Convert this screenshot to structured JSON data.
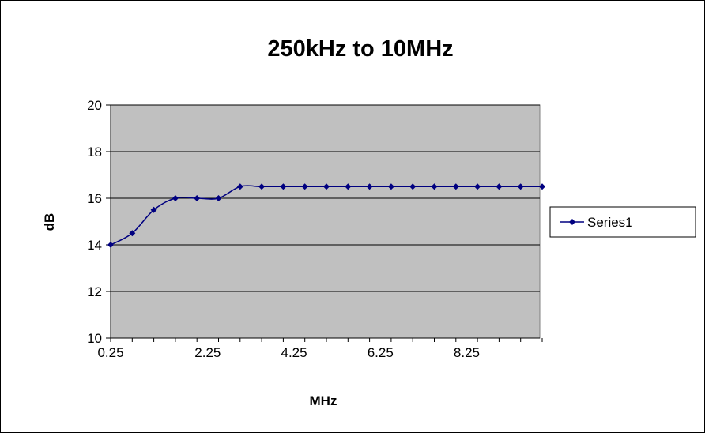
{
  "chart_data": {
    "type": "line",
    "title": "250kHz to 10MHz",
    "xlabel": "MHz",
    "ylabel": "dB",
    "ylim": [
      10,
      20
    ],
    "y_ticks": [
      "10",
      "12",
      "14",
      "16",
      "18",
      "20"
    ],
    "x_tick_labels": [
      "0.25",
      "2.25",
      "4.25",
      "6.25",
      "8.25"
    ],
    "grid": true,
    "legend_position": "right",
    "plot_background": "#c0c0c0",
    "series_color": "#000080",
    "x": [
      0.25,
      0.5,
      1,
      1.5,
      2,
      2.5,
      3,
      3.5,
      4,
      4.5,
      5,
      5.5,
      6,
      6.5,
      7,
      7.5,
      8,
      8.5,
      9,
      9.5,
      10
    ],
    "series": [
      {
        "name": "Series1",
        "values": [
          14,
          14.5,
          15.5,
          16,
          16,
          16,
          16.5,
          16.5,
          16.5,
          16.5,
          16.5,
          16.5,
          16.5,
          16.5,
          16.5,
          16.5,
          16.5,
          16.5,
          16.5,
          16.5,
          16.5
        ]
      }
    ]
  }
}
